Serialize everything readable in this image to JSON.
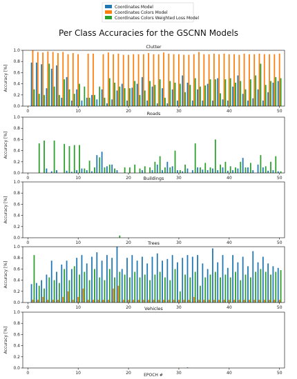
{
  "title": "Per Class Accuracies for the GSCNN Models",
  "legend": {
    "placement": "top-center",
    "entries": [
      {
        "label": "Coordinates Model",
        "color": "#1f77b4"
      },
      {
        "label": "Coordinates Colors Model",
        "color": "#ff7f0e"
      },
      {
        "label": "Coordinates Colors Weighted Loss Model",
        "color": "#2ca02c"
      }
    ]
  },
  "xlabel": "EPOCH #",
  "chart_data": [
    {
      "type": "bar",
      "title": "Clutter",
      "ylabel": "Accuracy [%]",
      "ylim": [
        0,
        1.0
      ],
      "yticks": [
        "0.0",
        "0.2",
        "0.4",
        "0.6",
        "0.8",
        "1.0"
      ],
      "xticks": [
        "0",
        "10",
        "20",
        "30",
        "40",
        "50"
      ],
      "xlim": [
        -1,
        51
      ],
      "x": [
        1,
        2,
        3,
        4,
        5,
        6,
        7,
        8,
        9,
        10,
        11,
        12,
        13,
        14,
        15,
        16,
        17,
        18,
        19,
        20,
        21,
        22,
        23,
        24,
        25,
        26,
        27,
        28,
        29,
        30,
        31,
        32,
        33,
        34,
        35,
        36,
        37,
        38,
        39,
        40,
        41,
        42,
        43,
        44,
        45,
        46,
        47,
        48,
        49,
        50
      ],
      "series": [
        {
          "name": "Coordinates Model",
          "color": "#1f77b4",
          "values": [
            0.78,
            0.78,
            0.75,
            0.32,
            0.67,
            0.73,
            0.15,
            0.52,
            0.1,
            0.3,
            0.1,
            0.15,
            0.2,
            0.12,
            0.3,
            0.05,
            0.12,
            0.28,
            0.4,
            0.1,
            0.33,
            0.4,
            0.52,
            0.1,
            0.35,
            0.05,
            0.32,
            0.05,
            0.3,
            0.1,
            0.55,
            0.42,
            0.1,
            0.3,
            0.1,
            0.4,
            0.1,
            0.5,
            0.12,
            0.1,
            0.35,
            0.55,
            0.22,
            0.1,
            0.14,
            0.3,
            0.1,
            0.25,
            0.42,
            0.45
          ]
        },
        {
          "name": "Coordinates Colors Model",
          "color": "#ff7f0e",
          "values": [
            1.0,
            0.97,
            0.96,
            0.98,
            0.97,
            0.95,
            0.97,
            0.93,
            0.95,
            0.93,
            0.0,
            0.94,
            0.94,
            0.0,
            0.93,
            0.96,
            0.93,
            0.94,
            0.92,
            0.92,
            0.93,
            0.93,
            0.93,
            0.95,
            0.93,
            0.93,
            0.96,
            0.94,
            0.93,
            0.93,
            0.92,
            0.92,
            0.93,
            0.97,
            0.93,
            0.93,
            0.94,
            0.93,
            0.94,
            0.93,
            0.93,
            0.92,
            0.94,
            0.93,
            0.93,
            0.94,
            0.93,
            0.93,
            0.93,
            0.94
          ]
        },
        {
          "name": "Coordinates Colors Weighted Loss Model",
          "color": "#2ca02c",
          "values": [
            0.3,
            0.22,
            0.2,
            0.76,
            0.35,
            0.2,
            0.48,
            0.3,
            0.22,
            0.4,
            0.35,
            0.15,
            0.2,
            0.35,
            0.15,
            0.5,
            0.42,
            0.35,
            0.32,
            0.32,
            0.45,
            0.2,
            0.28,
            0.45,
            0.38,
            0.48,
            0.15,
            0.45,
            0.42,
            0.4,
            0.25,
            0.38,
            0.5,
            0.35,
            0.37,
            0.48,
            0.48,
            0.23,
            0.48,
            0.5,
            0.42,
            0.45,
            0.3,
            0.48,
            0.55,
            0.76,
            0.38,
            0.45,
            0.52,
            0.5
          ]
        }
      ]
    },
    {
      "type": "bar",
      "title": "Roads",
      "ylabel": "Accuracy [%]",
      "ylim": [
        0,
        1.0
      ],
      "yticks": [
        "0.0",
        "0.2",
        "0.4",
        "0.6",
        "0.8",
        "1.0"
      ],
      "xticks": [
        "0",
        "10",
        "20",
        "30",
        "40",
        "50"
      ],
      "xlim": [
        -1,
        51
      ],
      "x": [
        1,
        2,
        3,
        4,
        5,
        6,
        7,
        8,
        9,
        10,
        11,
        12,
        13,
        14,
        15,
        16,
        17,
        18,
        19,
        20,
        21,
        22,
        23,
        24,
        25,
        26,
        27,
        28,
        29,
        30,
        31,
        32,
        33,
        34,
        35,
        36,
        37,
        38,
        39,
        40,
        41,
        42,
        43,
        44,
        45,
        46,
        47,
        48,
        49,
        50
      ],
      "series": [
        {
          "name": "Coordinates Model",
          "color": "#1f77b4",
          "values": [
            0.0,
            0.0,
            0.0,
            0.08,
            0.03,
            0.05,
            0.0,
            0.04,
            0.02,
            0.05,
            0.08,
            0.05,
            0.03,
            0.32,
            0.38,
            0.12,
            0.15,
            0.05,
            0.0,
            0.0,
            0.0,
            0.0,
            0.05,
            0.0,
            0.05,
            0.15,
            0.05,
            0.2,
            0.12,
            0.05,
            0.03,
            0.08,
            0.05,
            0.1,
            0.06,
            0.05,
            0.08,
            0.05,
            0.1,
            0.04,
            0.05,
            0.08,
            0.27,
            0.1,
            0.05,
            0.15,
            0.1,
            0.04,
            0.05,
            0.03
          ]
        },
        {
          "name": "Coordinates Colors Model",
          "color": "#ff7f0e",
          "values": [
            0.0,
            0.0,
            0.0,
            0.0,
            0.0,
            0.0,
            0.0,
            0.0,
            0.0,
            0.0,
            0.0,
            0.0,
            0.0,
            0.0,
            0.0,
            0.0,
            0.0,
            0.0,
            0.0,
            0.0,
            0.0,
            0.0,
            0.0,
            0.0,
            0.0,
            0.0,
            0.0,
            0.0,
            0.0,
            0.0,
            0.0,
            0.0,
            0.0,
            0.0,
            0.0,
            0.0,
            0.0,
            0.0,
            0.0,
            0.0,
            0.0,
            0.0,
            0.0,
            0.0,
            0.0,
            0.0,
            0.0,
            0.0,
            0.0,
            0.0
          ]
        },
        {
          "name": "Coordinates Colors Weighted Loss Model",
          "color": "#2ca02c",
          "values": [
            0.0,
            0.53,
            0.58,
            0.0,
            0.58,
            0.0,
            0.52,
            0.48,
            0.5,
            0.5,
            0.08,
            0.22,
            0.1,
            0.28,
            0.1,
            0.15,
            0.08,
            0.0,
            0.1,
            0.1,
            0.15,
            0.08,
            0.12,
            0.1,
            0.2,
            0.3,
            0.1,
            0.1,
            0.4,
            0.05,
            0.15,
            0.0,
            0.53,
            0.1,
            0.18,
            0.1,
            0.6,
            0.15,
            0.2,
            0.12,
            0.1,
            0.2,
            0.1,
            0.18,
            0.0,
            0.32,
            0.12,
            0.2,
            0.3,
            0.03
          ]
        }
      ]
    },
    {
      "type": "bar",
      "title": "Buildings",
      "ylabel": "Accuracy [%]",
      "ylim": [
        0,
        1.0
      ],
      "yticks": [
        "0.0",
        "0.2",
        "0.4",
        "0.6",
        "0.8",
        "1.0"
      ],
      "xticks": [
        "0",
        "10",
        "20",
        "30",
        "40",
        "50"
      ],
      "xlim": [
        -1,
        51
      ],
      "x": [
        18
      ],
      "series": [
        {
          "name": "Coordinates Model",
          "color": "#1f77b4",
          "values": [
            0.0
          ]
        },
        {
          "name": "Coordinates Colors Model",
          "color": "#ff7f0e",
          "values": [
            0.0
          ]
        },
        {
          "name": "Coordinates Colors Weighted Loss Model",
          "color": "#2ca02c",
          "values": [
            0.04
          ]
        }
      ]
    },
    {
      "type": "bar",
      "title": "Trees",
      "ylabel": "Accuracy [%]",
      "ylim": [
        0,
        1.0
      ],
      "yticks": [
        "0.0",
        "0.2",
        "0.4",
        "0.6",
        "0.8",
        "1.0"
      ],
      "xticks": [
        "0",
        "10",
        "20",
        "30",
        "40",
        "50"
      ],
      "xlim": [
        -1,
        51
      ],
      "x": [
        1,
        2,
        3,
        4,
        5,
        6,
        7,
        8,
        9,
        10,
        11,
        12,
        13,
        14,
        15,
        16,
        17,
        18,
        19,
        20,
        21,
        22,
        23,
        24,
        25,
        26,
        27,
        28,
        29,
        30,
        31,
        32,
        33,
        34,
        35,
        36,
        37,
        38,
        39,
        40,
        41,
        42,
        43,
        44,
        45,
        46,
        47,
        48,
        49,
        50
      ],
      "series": [
        {
          "name": "Coordinates Model",
          "color": "#1f77b4",
          "values": [
            0.33,
            0.35,
            0.4,
            0.5,
            0.75,
            0.55,
            0.68,
            0.75,
            0.6,
            0.8,
            0.85,
            0.7,
            0.82,
            0.9,
            0.75,
            0.85,
            0.8,
            1.0,
            0.6,
            0.8,
            0.85,
            0.75,
            0.82,
            0.7,
            0.82,
            0.88,
            0.75,
            0.78,
            0.85,
            0.72,
            0.8,
            0.85,
            0.82,
            0.85,
            0.7,
            0.6,
            0.97,
            0.72,
            0.85,
            0.62,
            0.85,
            0.72,
            0.82,
            0.65,
            0.92,
            0.72,
            0.82,
            0.7,
            0.65,
            0.62
          ]
        },
        {
          "name": "Coordinates Colors Model",
          "color": "#ff7f0e",
          "values": [
            0.05,
            0.05,
            0.1,
            0.05,
            0.05,
            0.05,
            0.1,
            0.2,
            0.05,
            0.1,
            0.25,
            0.05,
            0.05,
            0.05,
            0.05,
            0.05,
            0.25,
            0.3,
            0.05,
            0.05,
            0.05,
            0.05,
            0.05,
            0.05,
            0.05,
            0.05,
            0.05,
            0.05,
            0.05,
            0.05,
            0.05,
            0.05,
            0.1,
            0.05,
            0.05,
            0.05,
            0.05,
            0.05,
            0.05,
            0.05,
            0.05,
            0.05,
            0.05,
            0.05,
            0.05,
            0.05,
            0.05,
            0.05,
            0.05,
            0.05
          ]
        },
        {
          "name": "Coordinates Colors Weighted Loss Model",
          "color": "#2ca02c",
          "values": [
            0.85,
            0.3,
            0.25,
            0.45,
            0.4,
            0.35,
            0.6,
            0.4,
            0.65,
            0.5,
            0.55,
            0.4,
            0.6,
            0.45,
            0.4,
            0.6,
            0.45,
            0.55,
            0.5,
            0.45,
            0.55,
            0.45,
            0.5,
            0.4,
            0.5,
            0.55,
            0.45,
            0.4,
            0.6,
            0.2,
            0.5,
            0.45,
            0.55,
            0.3,
            0.45,
            0.5,
            0.55,
            0.45,
            0.5,
            0.45,
            0.55,
            0.4,
            0.5,
            0.45,
            0.55,
            0.6,
            0.55,
            0.5,
            0.55,
            0.58
          ]
        }
      ]
    },
    {
      "type": "bar",
      "title": "Vehicles",
      "ylabel": "Accuracy [%]",
      "ylim": [
        0,
        1.0
      ],
      "yticks": [
        "0.0",
        "0.2",
        "0.4",
        "0.6",
        "0.8",
        "1.0"
      ],
      "xticks": [
        "0",
        "10",
        "20",
        "30",
        "40",
        "50"
      ],
      "xlim": [
        -1,
        51
      ],
      "x": [
        32
      ],
      "series": [
        {
          "name": "Coordinates Model",
          "color": "#1f77b4",
          "values": [
            0.01
          ]
        },
        {
          "name": "Coordinates Colors Model",
          "color": "#ff7f0e",
          "values": [
            0.0
          ]
        },
        {
          "name": "Coordinates Colors Weighted Loss Model",
          "color": "#2ca02c",
          "values": [
            0.0
          ]
        }
      ]
    }
  ]
}
